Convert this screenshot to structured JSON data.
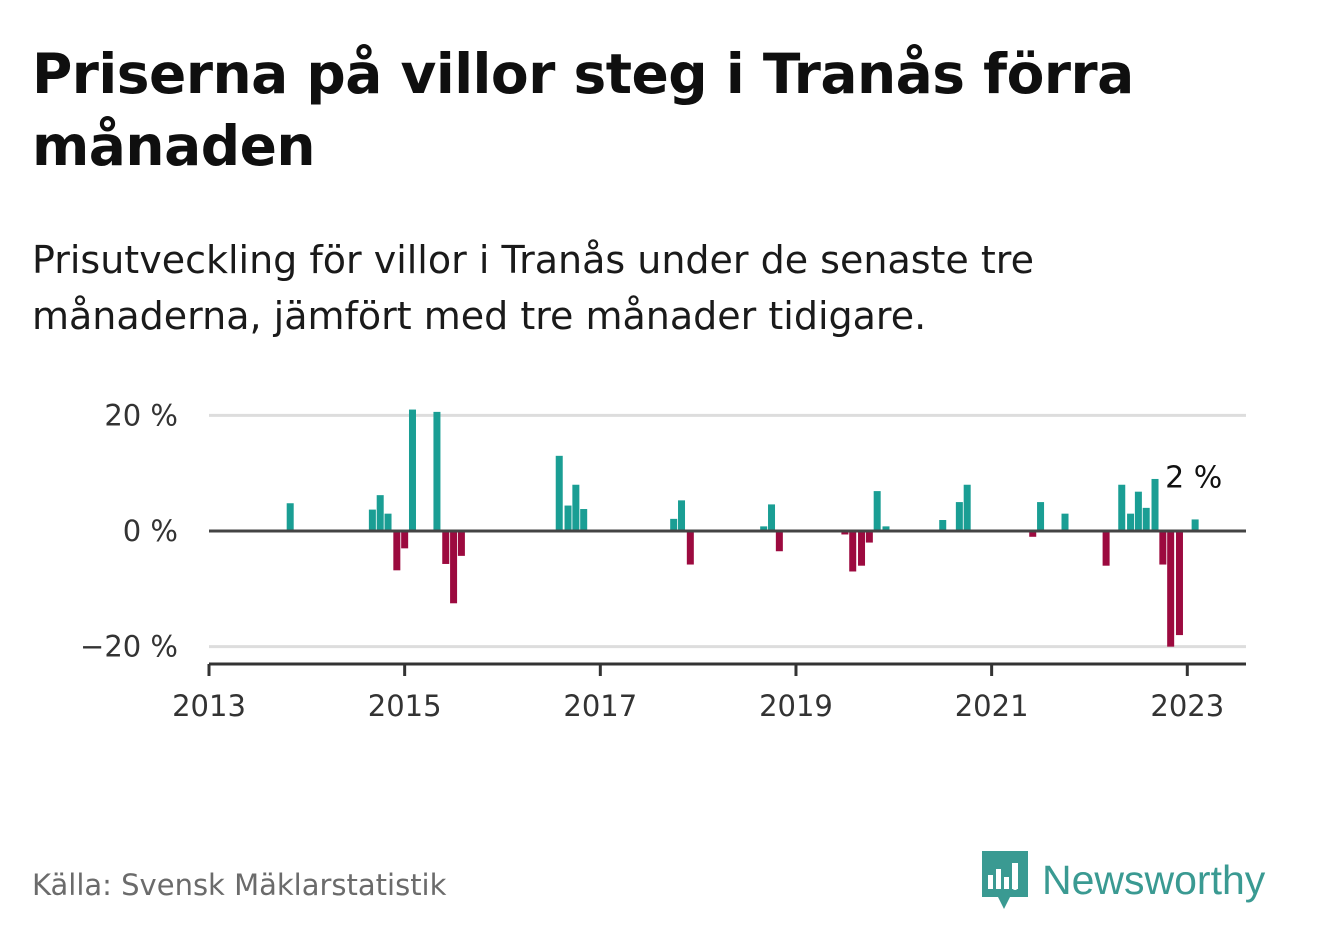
{
  "title": "Priserna på villor steg i Tranås förra månaden",
  "subtitle": "Prisutveckling för villor i Tranås under de senaste tre månaderna, jämfört med tre månader tidigare.",
  "source": "Källa: Svensk Mäklarstatistik",
  "brand": "Newsworthy",
  "colors": {
    "positive": "#1a9e94",
    "negative": "#9c0a3f",
    "brand": "#3a9a92"
  },
  "chart_data": {
    "type": "bar",
    "title": "",
    "xlabel": "",
    "ylabel": "",
    "ylim": [
      -23,
      23
    ],
    "xlim": [
      2013,
      2023.6
    ],
    "y_ticks": [
      {
        "value": 20,
        "label": "20 %"
      },
      {
        "value": 0,
        "label": "0 %"
      },
      {
        "value": -20,
        "label": "−20 %"
      }
    ],
    "x_ticks": [
      {
        "value": 2013,
        "label": "2013"
      },
      {
        "value": 2015,
        "label": "2015"
      },
      {
        "value": 2017,
        "label": "2017"
      },
      {
        "value": 2019,
        "label": "2019"
      },
      {
        "value": 2021,
        "label": "2021"
      },
      {
        "value": 2023,
        "label": "2023"
      }
    ],
    "grid": true,
    "series": [
      {
        "name": "Prisutveckling",
        "x": [
          2013.83,
          2014.67,
          2014.75,
          2014.83,
          2014.92,
          2015.0,
          2015.08,
          2015.33,
          2015.42,
          2015.5,
          2015.58,
          2015.92,
          2016.58,
          2016.67,
          2016.75,
          2016.83,
          2017.75,
          2017.83,
          2017.92,
          2018.67,
          2018.75,
          2018.83,
          2019.5,
          2019.58,
          2019.67,
          2019.75,
          2019.83,
          2019.92,
          2020.5,
          2020.67,
          2020.75,
          2021.42,
          2021.5,
          2021.75,
          2022.17,
          2022.33,
          2022.42,
          2022.5,
          2022.58,
          2022.67,
          2022.75,
          2022.83,
          2022.92,
          2023.08
        ],
        "values": [
          4.8,
          3.7,
          6.2,
          3.0,
          -6.8,
          -3.0,
          21.0,
          20.6,
          -5.7,
          -12.5,
          -4.3,
          0,
          13.0,
          4.4,
          8.0,
          3.8,
          2.1,
          5.3,
          -5.8,
          0.8,
          4.6,
          -3.5,
          -0.6,
          -7.0,
          -6.0,
          -2.0,
          6.9,
          0.8,
          1.9,
          5.0,
          8.0,
          -1.0,
          5.0,
          3.0,
          -6.0,
          8.0,
          3.0,
          6.8,
          4.0,
          9.0,
          -5.8,
          -20.0,
          -18.0,
          2.0
        ]
      }
    ],
    "annotations": [
      {
        "x": 2023.08,
        "y": 2.0,
        "label": "2 %"
      }
    ]
  }
}
